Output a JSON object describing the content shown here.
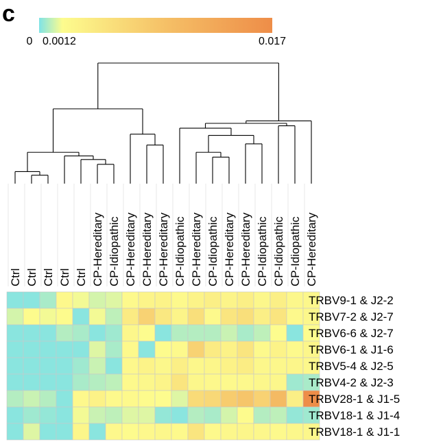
{
  "panel_label": "c",
  "chart_data": {
    "type": "heatmap",
    "colorbar": {
      "min": 0,
      "max": 0.017,
      "tick_values": [
        0,
        0.0012,
        0.017
      ],
      "tick_labels": [
        "0",
        "0.0012",
        "0.017"
      ],
      "colors": [
        "#7fe3e6",
        "#fdfc8e",
        "#f5bf66",
        "#ee8d48"
      ]
    },
    "columns": [
      "Ctrl",
      "Ctrl",
      "Ctrl",
      "Ctrl",
      "Ctrl",
      "CP-Hereditary",
      "CP-Idiopathic",
      "CP-Hereditary",
      "CP-Hereditary",
      "CP-Hereditary",
      "CP-Idiopathic",
      "CP-Hereditary",
      "CP-Idiopathic",
      "CP-Hereditary",
      "CP-Hereditary",
      "CP-Idiopathic",
      "CP-Idiopathic",
      "CP-Idiopathic",
      "CP-Hereditary"
    ],
    "rows": [
      "TRBV9-1 & J2-2",
      "TRBV7-2 & J2-7",
      "TRBV6-6 & J2-7",
      "TRBV6-1 & J1-6",
      "TRBV5-4 & J2-5",
      "TRBV4-2 & J2-3",
      "TRBV28-1 & J1-5",
      "TRBV18-1 & J1-4",
      "TRBV18-1 & J1-1"
    ],
    "values": [
      [
        0.0001,
        0.0001,
        0.0004,
        0.0015,
        0.0011,
        0.0008,
        0.0009,
        0.0014,
        0.0018,
        0.0019,
        0.0014,
        0.0019,
        0.0022,
        0.0018,
        0.0022,
        0.0016,
        0.0022,
        0.0016,
        0.0016
      ],
      [
        0.0008,
        0.0013,
        0.0011,
        0.0013,
        0.0001,
        0.0011,
        0.0006,
        0.0025,
        0.0045,
        0.0028,
        0.0018,
        0.0035,
        0.0014,
        0.003,
        0.0035,
        0.0022,
        0.003,
        0.0014,
        0.0016
      ],
      [
        0.0001,
        0.0001,
        0.0001,
        0.0005,
        0.0004,
        0.0001,
        0.0003,
        0.0016,
        0.0012,
        0.0001,
        0.0005,
        0.0005,
        0.0005,
        0.0007,
        0.0004,
        0.0006,
        0.0012,
        0.0001,
        0.0012
      ],
      [
        0.0001,
        0.0001,
        0.0001,
        0.0001,
        0.0001,
        0.0009,
        0.0004,
        0.0014,
        0.0001,
        0.0013,
        0.0014,
        0.0045,
        0.0025,
        0.002,
        0.003,
        0.0014,
        0.0019,
        0.0014,
        0.0017
      ],
      [
        0.0001,
        0.0001,
        0.0001,
        0.0001,
        0.0003,
        0.0007,
        0.0001,
        0.0015,
        0.0019,
        0.0016,
        0.0022,
        0.0016,
        0.0017,
        0.002,
        0.0024,
        0.0016,
        0.0016,
        0.0017,
        0.0016
      ],
      [
        0.0001,
        0.0001,
        0.0001,
        0.0001,
        0.0004,
        0.0005,
        0.0006,
        0.0014,
        0.0016,
        0.0018,
        0.003,
        0.0016,
        0.0015,
        0.0014,
        0.0015,
        0.0016,
        0.0016,
        0.0003,
        0.0004
      ],
      [
        0.0005,
        0.0007,
        0.0005,
        0.0001,
        0.0015,
        0.002,
        0.0014,
        0.0014,
        0.0013,
        0.0012,
        0.0009,
        0.0038,
        0.004,
        0.005,
        0.0055,
        0.0045,
        0.007,
        0.0022,
        0.017
      ],
      [
        0.0001,
        0.0003,
        0.0002,
        0.0001,
        0.0011,
        0.0007,
        0.0006,
        0.0009,
        0.0009,
        0.0002,
        0.0001,
        0.0005,
        0.0004,
        0.0008,
        0.0013,
        0.0005,
        0.0006,
        0.0002,
        0.0003
      ],
      [
        0.0001,
        0.0009,
        0.0001,
        0.0001,
        0.0017,
        0.0001,
        0.0015,
        0.0013,
        0.0015,
        0.0016,
        0.0014,
        0.003,
        0.0014,
        0.0016,
        0.0017,
        0.0016,
        0.0014,
        0.0016,
        0.0016
      ]
    ],
    "dendrogram": {
      "leaf_order": [
        0,
        1,
        2,
        3,
        4,
        5,
        6,
        7,
        8,
        9,
        10,
        11,
        12,
        13,
        14,
        15,
        16,
        17,
        18
      ],
      "merges": [
        {
          "id": "m1",
          "a": "L1",
          "b": "L2",
          "height": 0.07
        },
        {
          "id": "m2",
          "a": "L0",
          "b": "m1",
          "height": 0.1
        },
        {
          "id": "m3",
          "a": "L5",
          "b": "L6",
          "height": 0.16
        },
        {
          "id": "m4",
          "a": "L4",
          "b": "m3",
          "height": 0.2
        },
        {
          "id": "m5",
          "a": "L3",
          "b": "m4",
          "height": 0.23
        },
        {
          "id": "m6",
          "a": "m2",
          "b": "m5",
          "height": 0.26
        },
        {
          "id": "m7",
          "a": "L8",
          "b": "L9",
          "height": 0.32
        },
        {
          "id": "m8",
          "a": "L7",
          "b": "m7",
          "height": 0.41
        },
        {
          "id": "m9",
          "a": "L12",
          "b": "L13",
          "height": 0.22
        },
        {
          "id": "m10",
          "a": "L11",
          "b": "m9",
          "height": 0.26
        },
        {
          "id": "m11",
          "a": "L14",
          "b": "L15",
          "height": 0.33
        },
        {
          "id": "m12",
          "a": "m10",
          "b": "m11",
          "height": 0.4
        },
        {
          "id": "m13",
          "a": "L10",
          "b": "m12",
          "height": 0.46
        },
        {
          "id": "m14",
          "a": "L16",
          "b": "L17",
          "height": 0.48
        },
        {
          "id": "m15",
          "a": "m13",
          "b": "m14",
          "height": 0.5
        },
        {
          "id": "m16",
          "a": "m15",
          "b": "L18",
          "height": 0.52
        },
        {
          "id": "m17",
          "a": "m6",
          "b": "m8",
          "height": 0.62
        },
        {
          "id": "m18",
          "a": "m17",
          "b": "m16",
          "height": 1.0
        }
      ]
    }
  }
}
